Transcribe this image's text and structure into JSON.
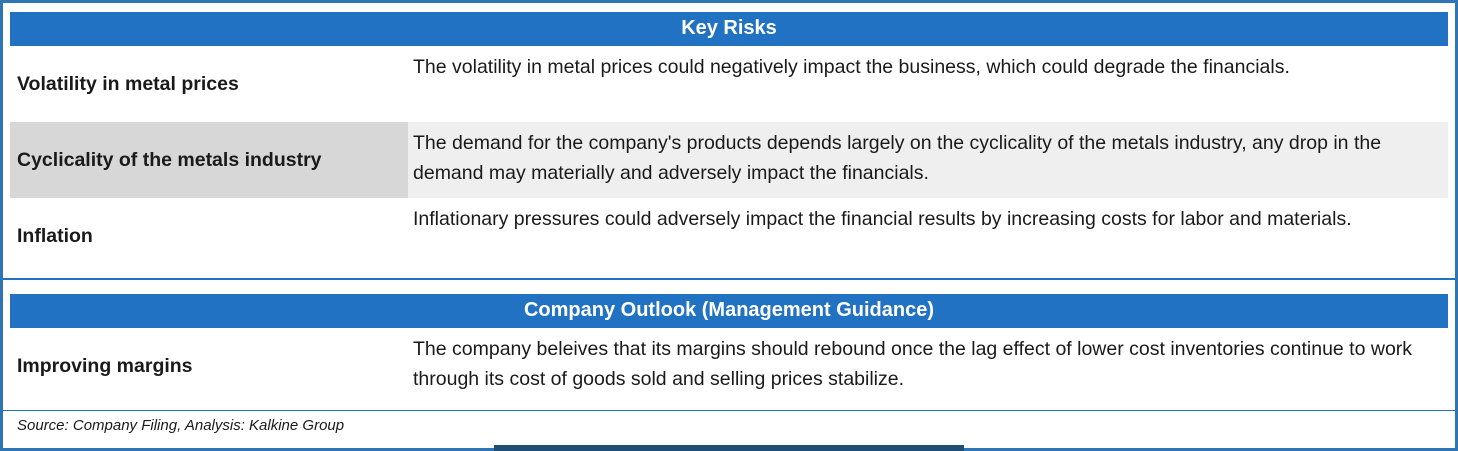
{
  "colors": {
    "accent_blue": "#2272c4",
    "border_blue": "#2e75b6",
    "shaded_label_gray": "#d7d7d7",
    "shaded_desc_gray": "#efefef",
    "bottom_accent_navy": "#1f4e79"
  },
  "sections": [
    {
      "title": "Key Risks",
      "rows": [
        {
          "label": "Volatility in metal prices",
          "description": "The volatility in metal prices could negatively impact the business, which could degrade the financials."
        },
        {
          "label": "Cyclicality of the metals industry",
          "description": "The demand for the company's products depends largely on the cyclicality of the metals industry, any drop in the demand may materially and adversely impact the financials."
        },
        {
          "label": "Inflation",
          "description": "Inflationary pressures could adversely impact the financial results by increasing costs for labor and materials."
        }
      ]
    },
    {
      "title": "Company Outlook (Management Guidance)",
      "rows": [
        {
          "label": "Improving margins",
          "description": "The company beleives that its margins should rebound once the lag effect of lower cost inventories continue to work through its cost of goods sold and selling prices stabilize."
        }
      ]
    }
  ],
  "source_note": "Source: Company Filing, Analysis: Kalkine Group"
}
